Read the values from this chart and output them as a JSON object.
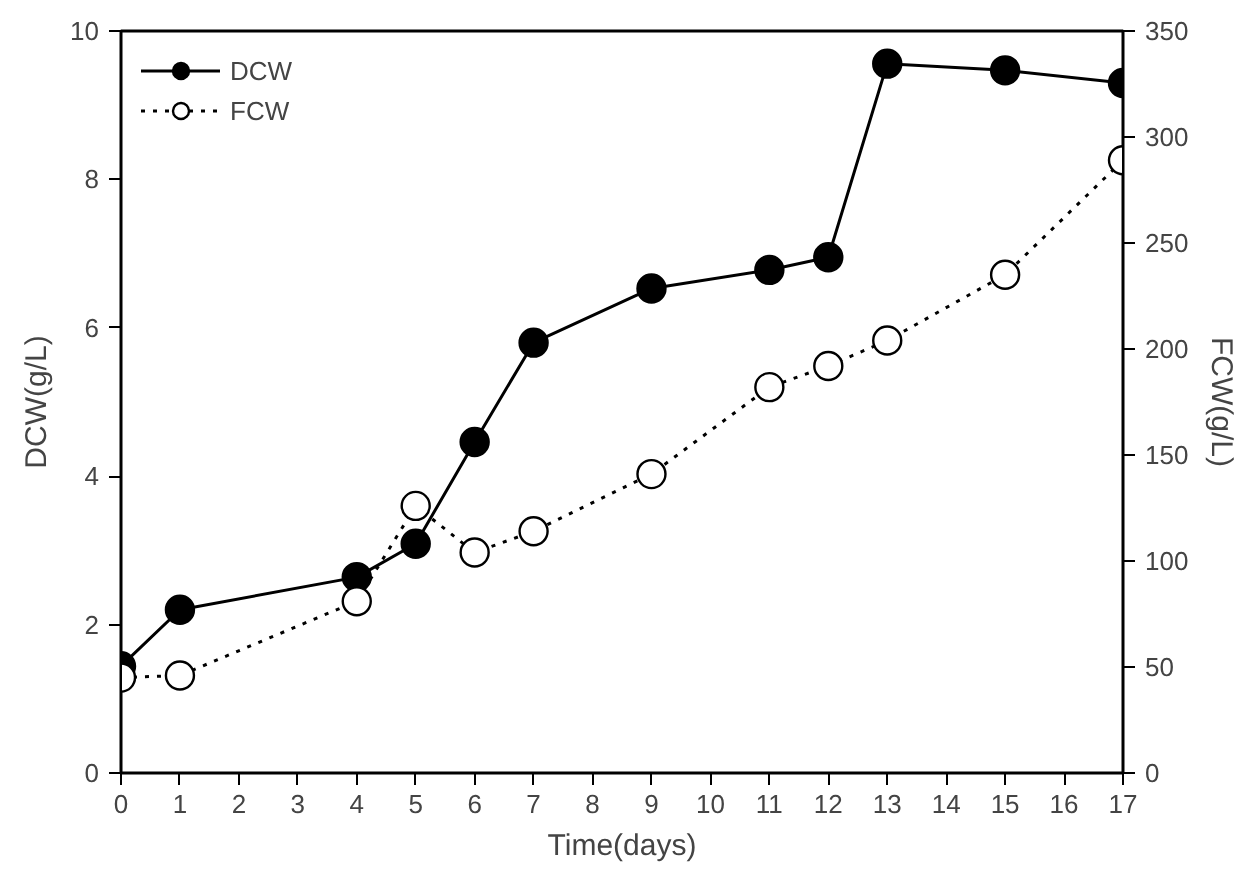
{
  "chart_data": {
    "type": "line",
    "xlabel": "Time(days)",
    "ylabel": "DCW(g/L)",
    "y2label": "FCW(g/L)",
    "x": [
      0,
      1,
      4,
      5,
      6,
      7,
      9,
      11,
      12,
      13,
      15,
      17
    ],
    "xlim": [
      0,
      17
    ],
    "xticks": [
      0,
      1,
      2,
      3,
      4,
      5,
      6,
      7,
      8,
      9,
      10,
      11,
      12,
      13,
      14,
      15,
      16,
      17
    ],
    "ylim": [
      0,
      10
    ],
    "yticks": [
      0,
      2,
      4,
      6,
      8,
      10
    ],
    "y2lim": [
      0,
      350
    ],
    "y2ticks": [
      0,
      50,
      100,
      150,
      200,
      250,
      300,
      350
    ],
    "grid": false,
    "legend": "top left",
    "marker": "circle",
    "series": [
      {
        "name": "DCW",
        "color": "#000000",
        "line_style": "solid",
        "values": [
          1.44,
          2.2,
          2.64,
          3.09,
          4.46,
          5.8,
          6.53,
          6.78,
          6.95,
          9.56,
          9.47,
          9.3
        ]
      },
      {
        "name": "FCW",
        "color": "#ffffff",
        "line_style": "dotted",
        "axis": "y2",
        "values": [
          45,
          46,
          81,
          126,
          104,
          114,
          141,
          182,
          192,
          204,
          235,
          289
        ]
      }
    ]
  }
}
